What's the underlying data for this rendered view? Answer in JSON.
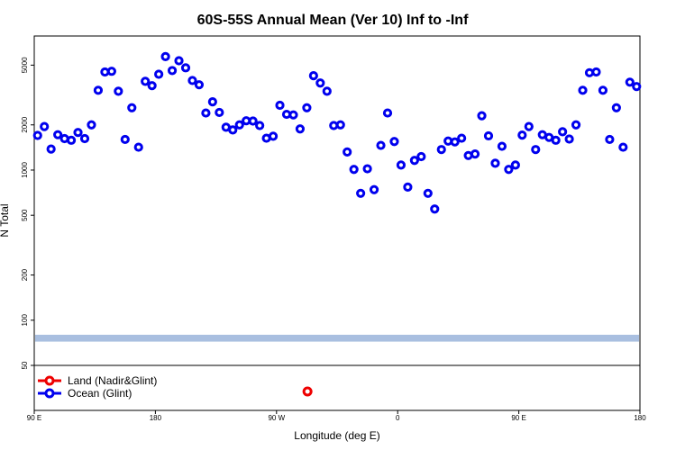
{
  "chart_data": {
    "type": "scatter",
    "title": "60S-55S Annual Mean (Ver 10)   Inf to -Inf",
    "xlabel": "Longitude (deg E)",
    "ylabel": "N Total",
    "x_ticks": [
      {
        "value": 0,
        "label": "90 E"
      },
      {
        "value": 90,
        "label": "180"
      },
      {
        "value": 180,
        "label": "90 W"
      },
      {
        "value": 270,
        "label": "0"
      },
      {
        "value": 360,
        "label": "90 E"
      },
      {
        "value": 450,
        "label": "180"
      }
    ],
    "xlim": [
      0,
      450
    ],
    "y_scale": "log",
    "ylim": [
      50,
      7000
    ],
    "y_ticks": [
      {
        "value": 50,
        "label": "50"
      },
      {
        "value": 100,
        "label": "100"
      },
      {
        "value": 200,
        "label": "200"
      },
      {
        "value": 500,
        "label": "500"
      },
      {
        "value": 1000,
        "label": "1000"
      },
      {
        "value": 2000,
        "label": "2000"
      },
      {
        "value": 5000,
        "label": "5000"
      }
    ],
    "band": {
      "y_from": 72,
      "y_to": 80,
      "color": "#a9bfe0"
    },
    "series": [
      {
        "name": "Ocean (Glint)",
        "color": "#0000ee",
        "points": [
          [
            2.5,
            1700
          ],
          [
            7.5,
            1950
          ],
          [
            12.5,
            1380
          ],
          [
            17.5,
            1720
          ],
          [
            22.5,
            1620
          ],
          [
            27.5,
            1580
          ],
          [
            32.5,
            1780
          ],
          [
            37.5,
            1620
          ],
          [
            42.5,
            2000
          ],
          [
            47.5,
            3400
          ],
          [
            52.5,
            4500
          ],
          [
            57.5,
            4550
          ],
          [
            62.5,
            3350
          ],
          [
            67.5,
            1600
          ],
          [
            72.5,
            2600
          ],
          [
            77.5,
            1420
          ],
          [
            82.5,
            3900
          ],
          [
            87.5,
            3650
          ],
          [
            92.5,
            4350
          ],
          [
            97.5,
            5700
          ],
          [
            102.5,
            4600
          ],
          [
            107.5,
            5350
          ],
          [
            112.5,
            4800
          ],
          [
            117.5,
            3950
          ],
          [
            122.5,
            3700
          ],
          [
            127.5,
            2400
          ],
          [
            132.5,
            2850
          ],
          [
            137.5,
            2420
          ],
          [
            142.5,
            1930
          ],
          [
            147.5,
            1850
          ],
          [
            152.5,
            2000
          ],
          [
            157.5,
            2130
          ],
          [
            162.5,
            2120
          ],
          [
            167.5,
            1980
          ],
          [
            172.5,
            1630
          ],
          [
            177.5,
            1680
          ],
          [
            182.5,
            2700
          ],
          [
            187.5,
            2350
          ],
          [
            192.5,
            2330
          ],
          [
            197.5,
            1880
          ],
          [
            202.5,
            2600
          ],
          [
            207.5,
            4250
          ],
          [
            212.5,
            3800
          ],
          [
            217.5,
            3350
          ],
          [
            222.5,
            1980
          ],
          [
            227.5,
            2000
          ],
          [
            232.5,
            1320
          ],
          [
            237.5,
            1010
          ],
          [
            242.5,
            700
          ],
          [
            247.5,
            1020
          ],
          [
            252.5,
            740
          ],
          [
            257.5,
            1460
          ],
          [
            262.5,
            2400
          ],
          [
            267.5,
            1550
          ],
          [
            272.5,
            1080
          ],
          [
            277.5,
            770
          ],
          [
            282.5,
            1160
          ],
          [
            287.5,
            1230
          ],
          [
            292.5,
            700
          ],
          [
            297.5,
            550
          ],
          [
            302.5,
            1370
          ],
          [
            307.5,
            1560
          ],
          [
            312.5,
            1540
          ],
          [
            317.5,
            1630
          ],
          [
            322.5,
            1250
          ],
          [
            327.5,
            1280
          ],
          [
            332.5,
            2300
          ],
          [
            337.5,
            1690
          ],
          [
            342.5,
            1110
          ],
          [
            347.5,
            1440
          ],
          [
            352.5,
            1010
          ],
          [
            357.5,
            1080
          ],
          [
            362.5,
            1710
          ],
          [
            367.5,
            1950
          ],
          [
            372.5,
            1370
          ],
          [
            377.5,
            1720
          ],
          [
            382.5,
            1650
          ],
          [
            387.5,
            1580
          ],
          [
            392.5,
            1800
          ],
          [
            397.5,
            1610
          ],
          [
            402.5,
            2000
          ],
          [
            407.5,
            3400
          ],
          [
            412.5,
            4450
          ],
          [
            417.5,
            4500
          ],
          [
            422.5,
            3400
          ],
          [
            427.5,
            1600
          ],
          [
            432.5,
            2600
          ],
          [
            437.5,
            1420
          ],
          [
            442.5,
            3850
          ],
          [
            447.5,
            3600
          ]
        ]
      },
      {
        "name": "Land (Nadir&Glint)",
        "color": "#ee0000",
        "points": []
      }
    ],
    "legend": {
      "position": "bottom-left",
      "entries": [
        {
          "label": "Land (Nadir&Glint)",
          "color": "#ee0000"
        },
        {
          "label": "Ocean (Glint)",
          "color": "#0000ee"
        }
      ]
    },
    "marker_panel": {
      "marker_color": "#ee0000",
      "marker_x": 203
    }
  }
}
